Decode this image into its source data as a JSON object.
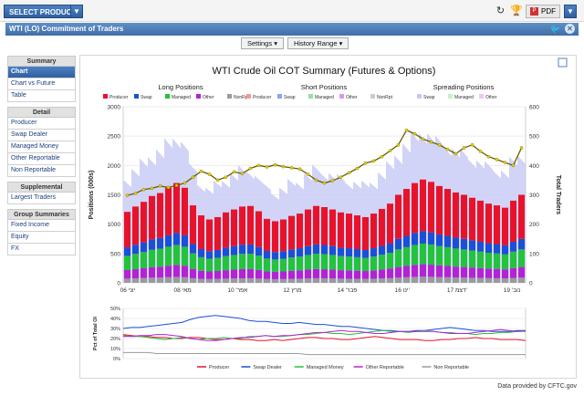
{
  "toolbar": {
    "select_product": "SELECT PRODUCT",
    "pdf_label": "PDF"
  },
  "header": {
    "title": "WTI (LO) Commitment of Traders"
  },
  "controls": {
    "settings": "Settings",
    "history_range": "History Range"
  },
  "sidebar": {
    "sections": [
      {
        "title": "Summary",
        "items": [
          "Chart",
          "Chart vs Future",
          "Table"
        ]
      },
      {
        "title": "Detail",
        "items": [
          "Producer",
          "Swap Dealer",
          "Managed Money",
          "Other Reportable",
          "Non Reportable"
        ]
      },
      {
        "title": "Supplemental",
        "items": [
          "Largest Traders"
        ]
      },
      {
        "title": "Group Summaries",
        "items": [
          "Fixed Income",
          "Equity",
          "FX"
        ]
      }
    ],
    "active": "Chart"
  },
  "chart_data": {
    "type": "bar",
    "title": "WTI Crude Oil COT Summary (Futures & Options)",
    "groups": [
      {
        "title": "Long Positions",
        "legend": [
          "Producer",
          "Swap",
          "Managed",
          "Other",
          "NonRpt"
        ],
        "colors": [
          "#e8132a",
          "#1a4fd8",
          "#21c43a",
          "#b422d6",
          "#9a9a9a"
        ]
      },
      {
        "title": "Short Positions",
        "legend": [
          "Producer",
          "Swap",
          "Managed",
          "Other",
          "NonRpt"
        ],
        "colors": [
          "#f4979b",
          "#8aa5f0",
          "#93e2a0",
          "#dc97ee",
          "#cccccc"
        ]
      },
      {
        "title": "Spreading Positions",
        "legend": [
          "Swap",
          "Managed",
          "Other"
        ],
        "colors": [
          "#c3c8f3",
          "#c9efcb",
          "#efc6f3"
        ]
      }
    ],
    "ylabel": "Positions (000s)",
    "y2label": "Total Traders",
    "ylim": [
      0,
      3000
    ],
    "y2lim": [
      0,
      600
    ],
    "yticks": [
      "0",
      "500",
      "1000",
      "1500",
      "2000",
      "2500",
      "3000"
    ],
    "y2ticks": [
      "0",
      "100",
      "200",
      "300",
      "400",
      "500",
      "600"
    ],
    "xticks": [
      "יוני 06",
      "08 מאי",
      "אפר' 10",
      "12 מרץ",
      "פבר' 14",
      "16 ינו'",
      "17 דצמ'",
      "נוב' 19"
    ],
    "long_total": [
      1210,
      1300,
      1380,
      1480,
      1530,
      1620,
      1700,
      1620,
      1320,
      1150,
      1080,
      1120,
      1200,
      1250,
      1300,
      1310,
      1220,
      1090,
      1050,
      1080,
      1140,
      1180,
      1250,
      1310,
      1290,
      1250,
      1200,
      1180,
      1150,
      1120,
      1180,
      1260,
      1350,
      1500,
      1600,
      1700,
      1760,
      1720,
      1650,
      1600,
      1540,
      1500,
      1450,
      1400,
      1350,
      1320,
      1280,
      1400,
      1500
    ],
    "total_traders": [
      298,
      305,
      318,
      322,
      330,
      325,
      332,
      340,
      360,
      380,
      370,
      350,
      360,
      378,
      372,
      390,
      400,
      395,
      402,
      396,
      392,
      388,
      370,
      350,
      340,
      348,
      360,
      375,
      390,
      408,
      415,
      430,
      450,
      470,
      520,
      508,
      490,
      480,
      470,
      455,
      440,
      460,
      470,
      448,
      430,
      420,
      410,
      400,
      460
    ],
    "sub_chart": {
      "ylabel": "Pct of Total OI",
      "yticks": [
        "0%",
        "10%",
        "20%",
        "30%",
        "40%",
        "50%"
      ],
      "ylim": [
        0,
        50
      ],
      "series": [
        {
          "name": "Producer",
          "color": "#e8132a",
          "values": [
            24,
            23,
            22,
            22,
            21,
            21,
            20,
            20,
            21,
            21,
            20,
            19,
            19,
            20,
            19,
            19,
            18,
            18,
            19,
            18,
            19,
            20,
            21,
            21,
            20,
            20,
            19,
            19,
            20,
            21,
            22,
            21,
            20,
            19,
            19,
            19,
            18,
            18,
            19,
            19,
            20,
            20,
            21,
            20,
            20,
            19,
            19,
            19,
            18
          ]
        },
        {
          "name": "Swap Dealer",
          "color": "#1a4fd8",
          "values": [
            30,
            31,
            31,
            32,
            33,
            34,
            35,
            36,
            39,
            41,
            42,
            43,
            42,
            41,
            40,
            38,
            37,
            37,
            36,
            35,
            35,
            36,
            35,
            34,
            34,
            33,
            32,
            32,
            31,
            30,
            29,
            28,
            28,
            27,
            27,
            28,
            28,
            29,
            30,
            31,
            30,
            29,
            28,
            28,
            27,
            27,
            27,
            28,
            28
          ]
        },
        {
          "name": "Managed Money",
          "color": "#21c43a",
          "values": [
            23,
            22,
            22,
            21,
            20,
            19,
            20,
            21,
            20,
            19,
            20,
            20,
            21,
            20,
            20,
            22,
            22,
            23,
            22,
            22,
            23,
            24,
            24,
            25,
            26,
            25,
            25,
            24,
            25,
            26,
            27,
            28,
            27,
            27,
            26,
            27,
            28,
            27,
            26,
            26,
            25,
            25,
            24,
            25,
            25,
            26,
            26,
            27,
            27
          ]
        },
        {
          "name": "Other Reportable",
          "color": "#b422d6",
          "values": [
            22,
            22,
            23,
            23,
            24,
            24,
            23,
            22,
            20,
            19,
            18,
            18,
            19,
            20,
            21,
            21,
            22,
            23,
            22,
            23,
            23,
            24,
            25,
            26,
            26,
            27,
            28,
            27,
            27,
            26,
            25,
            25,
            26,
            27,
            27,
            27,
            27,
            27,
            26,
            25,
            25,
            25,
            26,
            27,
            28,
            29,
            28,
            27,
            28
          ]
        },
        {
          "name": "Non Reportable",
          "color": "#9a9a9a",
          "values": [
            6,
            6,
            6,
            6,
            5,
            5,
            5,
            5,
            5,
            5,
            5,
            5,
            5,
            5,
            5,
            5,
            5,
            5,
            5,
            5,
            5,
            5,
            4,
            4,
            4,
            4,
            4,
            4,
            4,
            4,
            4,
            4,
            4,
            4,
            4,
            4,
            4,
            4,
            4,
            4,
            4,
            4,
            4,
            4,
            4,
            4,
            4,
            4,
            4
          ]
        }
      ]
    }
  },
  "footer": {
    "credit": "Data provided by CFTC.gov"
  }
}
